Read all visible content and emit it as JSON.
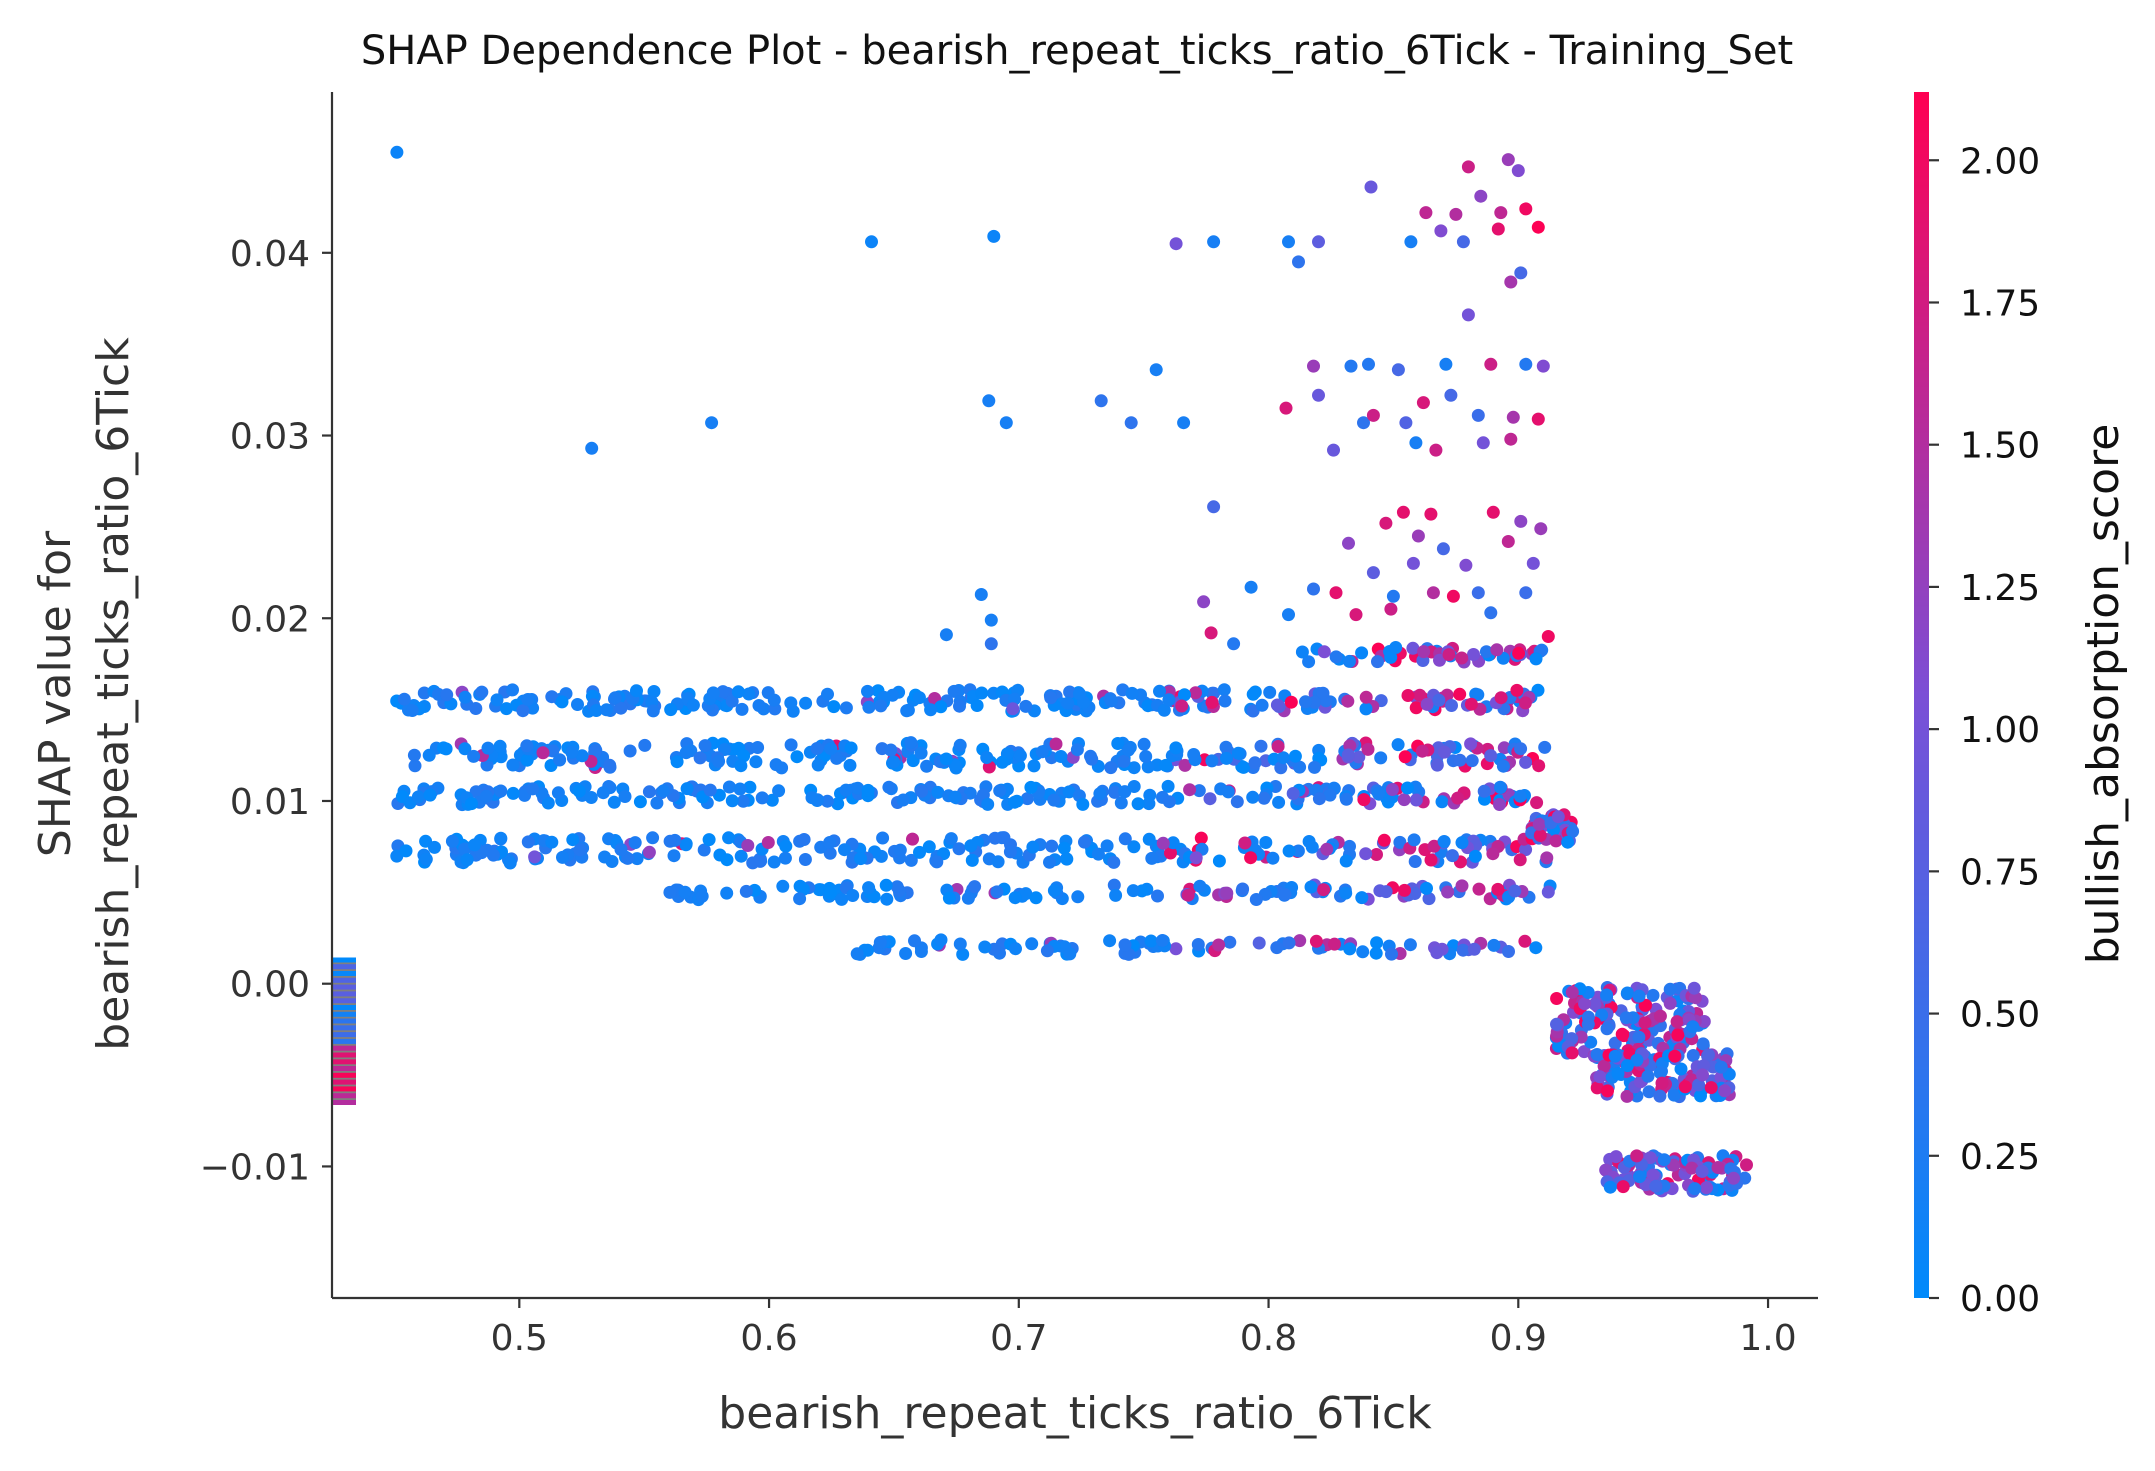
{
  "chart_data": {
    "type": "scatter",
    "title": "SHAP Dependence Plot - bearish_repeat_ticks_ratio_6Tick - Training_Set",
    "xlabel": "bearish_repeat_ticks_ratio_6Tick",
    "ylabel_line1": "SHAP value for",
    "ylabel_line2": "bearish_repeat_ticks_ratio_6Tick",
    "xlim": [
      0.425,
      1.02
    ],
    "ylim": [
      -0.0172,
      0.0488
    ],
    "x_ticks": [
      0.5,
      0.6,
      0.7,
      0.8,
      0.9,
      1.0
    ],
    "x_tick_labels": [
      "0.5",
      "0.6",
      "0.7",
      "0.8",
      "0.9",
      "1.0"
    ],
    "y_ticks": [
      -0.01,
      0.0,
      0.01,
      0.02,
      0.03,
      0.04
    ],
    "y_tick_labels": [
      "−0.01",
      "0.00",
      "0.01",
      "0.02",
      "0.03",
      "0.04"
    ],
    "grid": false,
    "colorbar": {
      "label": "bullish_absorption_score",
      "range": [
        0.0,
        2.12
      ],
      "ticks": [
        0.0,
        0.25,
        0.5,
        0.75,
        1.0,
        1.25,
        1.5,
        1.75,
        2.0
      ],
      "tick_labels": [
        "0.00",
        "0.25",
        "0.50",
        "0.75",
        "1.00",
        "1.25",
        "1.50",
        "1.75",
        "2.00"
      ],
      "color_low": "#008afb",
      "color_mid": "#7b4fd6",
      "color_high": "#ff0052"
    },
    "nan_strip": {
      "description_color": "#808080",
      "y_range": [
        -0.0065,
        0.0013
      ]
    },
    "points": [
      [
        0.451,
        0.0455,
        0.1
      ],
      [
        0.641,
        0.0406,
        0.1
      ],
      [
        0.69,
        0.0409,
        0.1
      ],
      [
        0.763,
        0.0405,
        1.0
      ],
      [
        0.778,
        0.0406,
        0.2
      ],
      [
        0.808,
        0.0406,
        0.2
      ],
      [
        0.812,
        0.0395,
        0.4
      ],
      [
        0.82,
        0.0406,
        0.8
      ],
      [
        0.841,
        0.0436,
        0.9
      ],
      [
        0.857,
        0.0406,
        0.2
      ],
      [
        0.863,
        0.0422,
        1.6
      ],
      [
        0.869,
        0.0412,
        1.1
      ],
      [
        0.878,
        0.0406,
        0.6
      ],
      [
        0.88,
        0.0447,
        1.7
      ],
      [
        0.885,
        0.0431,
        1.2
      ],
      [
        0.893,
        0.0422,
        1.6
      ],
      [
        0.896,
        0.0451,
        1.3
      ],
      [
        0.9,
        0.0445,
        1.1
      ],
      [
        0.903,
        0.0424,
        2.0
      ],
      [
        0.897,
        0.0384,
        1.4
      ],
      [
        0.901,
        0.0389,
        0.6
      ],
      [
        0.908,
        0.0414,
        2.1
      ],
      [
        0.892,
        0.0413,
        1.9
      ],
      [
        0.875,
        0.0421,
        1.5
      ],
      [
        0.529,
        0.0293,
        0.2
      ],
      [
        0.577,
        0.0307,
        0.2
      ],
      [
        0.688,
        0.0319,
        0.2
      ],
      [
        0.695,
        0.0307,
        0.2
      ],
      [
        0.733,
        0.0319,
        0.4
      ],
      [
        0.745,
        0.0307,
        0.4
      ],
      [
        0.755,
        0.0336,
        0.2
      ],
      [
        0.766,
        0.0307,
        0.2
      ],
      [
        0.807,
        0.0315,
        1.8
      ],
      [
        0.818,
        0.0338,
        1.3
      ],
      [
        0.82,
        0.0322,
        0.9
      ],
      [
        0.833,
        0.0338,
        0.3
      ],
      [
        0.838,
        0.0307,
        0.4
      ],
      [
        0.842,
        0.0311,
        1.7
      ],
      [
        0.84,
        0.0339,
        0.3
      ],
      [
        0.826,
        0.0292,
        0.9
      ],
      [
        0.852,
        0.0336,
        0.6
      ],
      [
        0.855,
        0.0307,
        0.7
      ],
      [
        0.859,
        0.0296,
        0.2
      ],
      [
        0.867,
        0.0292,
        1.7
      ],
      [
        0.871,
        0.0339,
        0.2
      ],
      [
        0.873,
        0.0322,
        0.6
      ],
      [
        0.884,
        0.0311,
        0.5
      ],
      [
        0.889,
        0.0339,
        1.7
      ],
      [
        0.897,
        0.0298,
        1.6
      ],
      [
        0.903,
        0.0339,
        0.3
      ],
      [
        0.908,
        0.0309,
        1.9
      ],
      [
        0.91,
        0.0338,
        1.1
      ],
      [
        0.898,
        0.031,
        1.4
      ],
      [
        0.886,
        0.0296,
        1.0
      ],
      [
        0.88,
        0.0366,
        1.0
      ],
      [
        0.862,
        0.0318,
        1.8
      ],
      [
        0.778,
        0.0261,
        0.6
      ],
      [
        0.685,
        0.0213,
        0.2
      ],
      [
        0.689,
        0.0199,
        0.2
      ],
      [
        0.671,
        0.0191,
        0.2
      ],
      [
        0.689,
        0.0186,
        0.4
      ],
      [
        0.774,
        0.0209,
        1.2
      ],
      [
        0.777,
        0.0192,
        1.8
      ],
      [
        0.793,
        0.0217,
        0.2
      ],
      [
        0.786,
        0.0186,
        0.3
      ],
      [
        0.818,
        0.0216,
        0.4
      ],
      [
        0.808,
        0.0202,
        0.2
      ],
      [
        0.827,
        0.0214,
        1.9
      ],
      [
        0.835,
        0.0202,
        1.8
      ],
      [
        0.842,
        0.0225,
        0.8
      ],
      [
        0.847,
        0.0252,
        1.8
      ],
      [
        0.854,
        0.0258,
        1.9
      ],
      [
        0.86,
        0.0245,
        1.3
      ],
      [
        0.865,
        0.0257,
        1.9
      ],
      [
        0.87,
        0.0238,
        0.6
      ],
      [
        0.879,
        0.0229,
        1.1
      ],
      [
        0.884,
        0.0214,
        0.5
      ],
      [
        0.89,
        0.0258,
        1.9
      ],
      [
        0.896,
        0.0242,
        1.6
      ],
      [
        0.901,
        0.0253,
        1.2
      ],
      [
        0.906,
        0.023,
        1.0
      ],
      [
        0.909,
        0.0249,
        1.3
      ],
      [
        0.912,
        0.019,
        2.0
      ],
      [
        0.85,
        0.0212,
        0.3
      ],
      [
        0.858,
        0.023,
        1.0
      ],
      [
        0.874,
        0.0212,
        2.0
      ],
      [
        0.889,
        0.0203,
        0.4
      ],
      [
        0.903,
        0.0214,
        0.5
      ],
      [
        0.832,
        0.0241,
        1.2
      ],
      [
        0.849,
        0.0205,
        1.7
      ],
      [
        0.866,
        0.0214,
        1.5
      ]
    ],
    "bands": [
      {
        "y": 0.0155,
        "jitter": 0.0006,
        "x0": 0.45,
        "x1": 0.913,
        "n": 260
      },
      {
        "y": 0.0125,
        "jitter": 0.0007,
        "x0": 0.45,
        "x1": 0.913,
        "n": 260
      },
      {
        "y": 0.0103,
        "jitter": 0.0005,
        "x0": 0.45,
        "x1": 0.913,
        "n": 230
      },
      {
        "y": 0.0073,
        "jitter": 0.0007,
        "x0": 0.45,
        "x1": 0.913,
        "n": 240
      },
      {
        "y": 0.005,
        "jitter": 0.0004,
        "x0": 0.56,
        "x1": 0.913,
        "n": 130
      },
      {
        "y": 0.002,
        "jitter": 0.0004,
        "x0": 0.63,
        "x1": 0.913,
        "n": 90
      },
      {
        "y": 0.018,
        "jitter": 0.0004,
        "x0": 0.81,
        "x1": 0.913,
        "n": 50
      },
      {
        "y": 0.0085,
        "jitter": 0.0008,
        "x0": 0.905,
        "x1": 0.923,
        "n": 40
      },
      {
        "y": -0.002,
        "jitter": 0.0018,
        "x0": 0.915,
        "x1": 0.975,
        "n": 150
      },
      {
        "y": -0.005,
        "jitter": 0.0012,
        "x0": 0.93,
        "x1": 0.985,
        "n": 120
      },
      {
        "y": -0.0104,
        "jitter": 0.001,
        "x0": 0.935,
        "x1": 0.992,
        "n": 100
      }
    ]
  }
}
